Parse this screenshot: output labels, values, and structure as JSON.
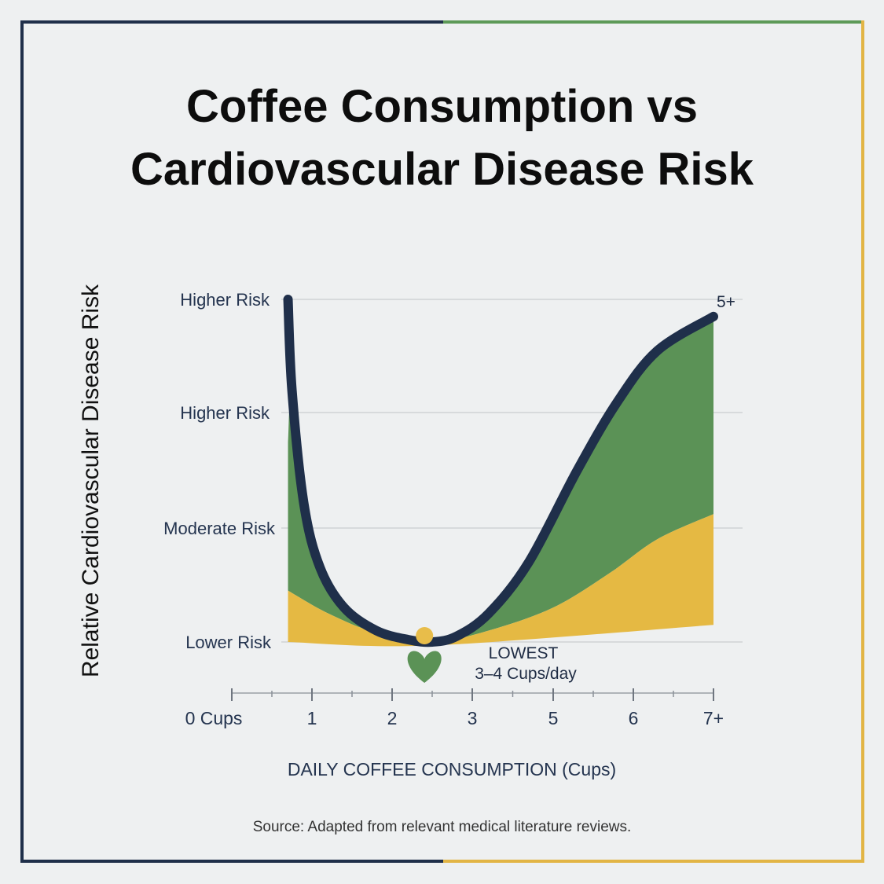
{
  "title_lines": [
    "Coffee Consumption vs",
    "Cardiovascular Disease Risk"
  ],
  "source": "Source: Adapted from relevant medical literature reviews.",
  "colors": {
    "navy": "#1f2f4a",
    "green": "#5b9256",
    "yellow": "#e5b943",
    "grid": "#cfd3d6",
    "frame_green": "#5d9a58",
    "frame_yellow": "#e2b545"
  },
  "chart_data": {
    "type": "area",
    "xlabel": "DAILY COFFEE CONSUMPTION (Cups)",
    "ylabel": "Relative Cardiovascular Disease Risk",
    "x_ticks": [
      "0 Cups",
      "1",
      "2",
      "3",
      "5",
      "6",
      "7+"
    ],
    "y_ticks": [
      "Lower Risk",
      "Moderate Risk",
      "Higher Risk",
      "Higher Risk"
    ],
    "ylim": [
      0,
      3
    ],
    "risk_curve": [
      [
        0.7,
        3.0
      ],
      [
        0.75,
        2.2
      ],
      [
        0.9,
        1.2
      ],
      [
        1.1,
        0.65
      ],
      [
        1.4,
        0.3
      ],
      [
        1.8,
        0.1
      ],
      [
        2.2,
        0.02
      ],
      [
        2.5,
        0.0
      ],
      [
        2.8,
        0.05
      ],
      [
        3.2,
        0.25
      ],
      [
        3.7,
        0.7
      ],
      [
        4.3,
        1.5
      ],
      [
        4.8,
        2.1
      ],
      [
        5.3,
        2.55
      ],
      [
        6.0,
        2.85
      ]
    ],
    "green_band_top_left": 1.75,
    "yellow_band": [
      [
        0.7,
        0.45
      ],
      [
        1.2,
        0.25
      ],
      [
        1.8,
        0.08
      ],
      [
        2.5,
        0.0
      ],
      [
        3.2,
        0.1
      ],
      [
        4.0,
        0.3
      ],
      [
        4.7,
        0.6
      ],
      [
        5.3,
        0.9
      ],
      [
        6.0,
        1.12
      ]
    ],
    "baseline": [
      [
        0.7,
        0.0
      ],
      [
        2.5,
        -0.03
      ],
      [
        6.0,
        0.15
      ]
    ],
    "minimum_marker": {
      "x": 2.4,
      "y": 0.0
    },
    "annotations": {
      "min_label": "LOWEST",
      "min_sublabel": "3–4 Cups/day",
      "end_label": "5+"
    }
  }
}
